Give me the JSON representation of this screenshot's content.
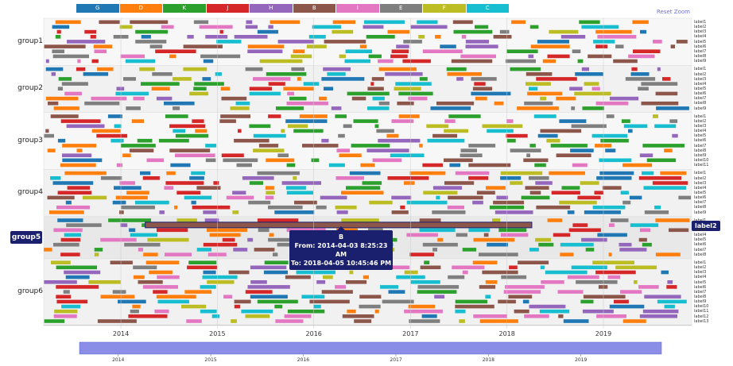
{
  "legend": [
    {
      "name": "G",
      "color": "#1f77b4"
    },
    {
      "name": "D",
      "color": "#ff7f0e"
    },
    {
      "name": "K",
      "color": "#2ca02c"
    },
    {
      "name": "J",
      "color": "#d62728"
    },
    {
      "name": "H",
      "color": "#9467bd"
    },
    {
      "name": "B",
      "color": "#8c564b"
    },
    {
      "name": "I",
      "color": "#e377c2"
    },
    {
      "name": "E",
      "color": "#7f7f7f"
    },
    {
      "name": "F",
      "color": "#bcbd22"
    },
    {
      "name": "C",
      "color": "#17becf"
    }
  ],
  "reset_zoom": "Reset Zoom",
  "tooltip": {
    "title": "B",
    "from": "From: 2014-04-03 8:25:23 AM",
    "to": "To: 2018-04-05 10:45:46 PM"
  },
  "highlight_row_label": "label2",
  "chart_data": {
    "type": "timeline",
    "x_ticks": [
      "2014",
      "2015",
      "2016",
      "2017",
      "2018",
      "2019"
    ],
    "brush_ticks": [
      "2014",
      "2015",
      "2016",
      "2017",
      "2018",
      "2019"
    ],
    "xlim": [
      "2013-03-15",
      "2019-12-01"
    ],
    "brush_range": [
      "2013-08-01",
      "2019-11-15"
    ],
    "highlighted_group": "group5",
    "groups": [
      {
        "name": "group1",
        "rows": [
          "label1",
          "label2",
          "label3",
          "label4",
          "label5",
          "label6",
          "label7",
          "label8",
          "label9"
        ]
      },
      {
        "name": "group2",
        "rows": [
          "label1",
          "label2",
          "label3",
          "label4",
          "label5",
          "label6",
          "label7",
          "label8",
          "label9"
        ]
      },
      {
        "name": "group3",
        "rows": [
          "label1",
          "label2",
          "label3",
          "label4",
          "label5",
          "label6",
          "label7",
          "label8",
          "label9",
          "label10",
          "label11"
        ]
      },
      {
        "name": "group4",
        "rows": [
          "label1",
          "label2",
          "label3",
          "label4",
          "label5",
          "label6",
          "label7",
          "label8",
          "label9"
        ]
      },
      {
        "name": "group5",
        "rows": [
          "label1",
          "label2",
          "label3",
          "label4",
          "label5",
          "label6",
          "label7",
          "label8"
        ]
      },
      {
        "name": "group6",
        "rows": [
          "label1",
          "label2",
          "label3",
          "label4",
          "label5",
          "label6",
          "label7",
          "label8",
          "label9",
          "label10",
          "label11",
          "label12",
          "label13"
        ]
      }
    ],
    "highlighted_task": {
      "group": "group5",
      "row": "label2",
      "category": "B",
      "from": "2014-04-03",
      "to": "2018-04-05"
    }
  }
}
